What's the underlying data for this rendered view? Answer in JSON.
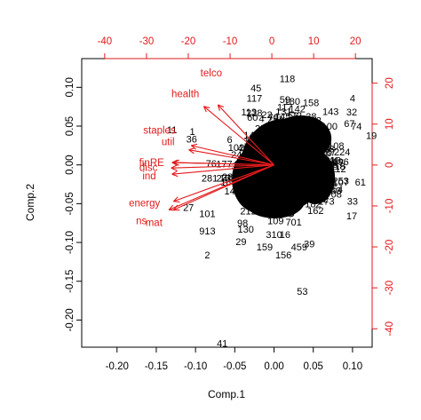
{
  "chart_data": {
    "type": "biplot",
    "xlabel": "Comp.1",
    "ylabel": "Comp.2",
    "xlim": [
      -0.245,
      0.125
    ],
    "ylim": [
      -0.235,
      0.137
    ],
    "x_ticks": [
      "-0.20",
      "-0.15",
      "-0.10",
      "-0.05",
      "0.00",
      "0.05",
      "0.10"
    ],
    "x_tick_values": [
      -0.2,
      -0.15,
      -0.1,
      -0.05,
      0.0,
      0.05,
      0.1
    ],
    "y_ticks": [
      "0.10",
      "0.05",
      "0.00",
      "-0.05",
      "-0.10",
      "-0.15",
      "-0.20"
    ],
    "y_tick_values": [
      0.1,
      0.05,
      0.0,
      -0.05,
      -0.1,
      -0.15,
      -0.2
    ],
    "top_ticks": [
      "-40",
      "-30",
      "-20",
      "-10",
      "0",
      "10",
      "20"
    ],
    "top_tick_values": [
      -40,
      -30,
      -20,
      -10,
      0,
      10,
      20
    ],
    "right_ticks": [
      "20",
      "10",
      "0",
      "-10",
      "-20",
      "-30",
      "-40"
    ],
    "right_tick_values": [
      20,
      10,
      0,
      -10,
      -20,
      -30,
      -40
    ],
    "top_lim": [
      -45.5,
      24.0
    ],
    "right_lim": [
      -44.5,
      26.0
    ],
    "arrow_color": "#e31a1c",
    "loadings": [
      {
        "name": "telco",
        "x": -0.0715,
        "y": 0.0775,
        "lx": -0.08,
        "ly": 0.119
      },
      {
        "name": "health",
        "x": -0.0895,
        "y": 0.0755,
        "lx": -0.113,
        "ly": 0.092
      },
      {
        "name": "staples",
        "x": -0.1055,
        "y": 0.025,
        "lx": -0.146,
        "ly": 0.045
      },
      {
        "name": "util",
        "x": -0.1085,
        "y": 0.0195,
        "lx": -0.135,
        "ly": 0.03
      },
      {
        "name": "fin",
        "x": -0.128,
        "y": 0.003,
        "lx": -0.165,
        "ly": 0.003
      },
      {
        "name": "RE",
        "x": -0.13,
        "y": 0.003,
        "lx": -0.149,
        "ly": 0.003
      },
      {
        "name": "disc",
        "x": -0.131,
        "y": -0.004,
        "lx": -0.16,
        "ly": -0.003
      },
      {
        "name": "ind",
        "x": -0.13,
        "y": -0.012,
        "lx": -0.159,
        "ly": -0.014
      },
      {
        "name": "energy",
        "x": -0.128,
        "y": -0.047,
        "lx": -0.165,
        "ly": -0.049
      },
      {
        "name": "mat",
        "x": -0.134,
        "y": -0.058,
        "lx": -0.153,
        "ly": -0.074
      },
      {
        "name": "ns",
        "x": -0.128,
        "y": -0.058,
        "lx": -0.169,
        "ly": -0.072
      }
    ],
    "observations": [
      {
        "label": "118",
        "x": 0.017,
        "y": 0.111
      },
      {
        "label": "45",
        "x": -0.023,
        "y": 0.099
      },
      {
        "label": "117",
        "x": -0.025,
        "y": 0.086
      },
      {
        "label": "59",
        "x": 0.014,
        "y": 0.084
      },
      {
        "label": "180",
        "x": 0.023,
        "y": 0.082
      },
      {
        "label": "158",
        "x": 0.047,
        "y": 0.08
      },
      {
        "label": "4",
        "x": 0.1,
        "y": 0.086
      },
      {
        "label": "143",
        "x": 0.072,
        "y": 0.069
      },
      {
        "label": "32",
        "x": 0.099,
        "y": 0.068
      },
      {
        "label": "67",
        "x": 0.096,
        "y": 0.053
      },
      {
        "label": "74",
        "x": 0.105,
        "y": 0.05
      },
      {
        "label": "19",
        "x": 0.124,
        "y": 0.038
      },
      {
        "label": "113",
        "x": -0.032,
        "y": 0.068
      },
      {
        "label": "262",
        "x": 0.05,
        "y": 0.057
      },
      {
        "label": "1",
        "x": -0.104,
        "y": 0.043
      },
      {
        "label": "36",
        "x": -0.105,
        "y": 0.033
      },
      {
        "label": "11",
        "x": -0.13,
        "y": 0.045
      },
      {
        "label": "76",
        "x": -0.08,
        "y": 0.002
      },
      {
        "label": "281",
        "x": -0.082,
        "y": -0.017
      },
      {
        "label": "27",
        "x": -0.109,
        "y": -0.055
      },
      {
        "label": "101",
        "x": -0.085,
        "y": -0.063
      },
      {
        "label": "913",
        "x": -0.085,
        "y": -0.085
      },
      {
        "label": "98",
        "x": -0.04,
        "y": -0.075
      },
      {
        "label": "130",
        "x": -0.036,
        "y": -0.083
      },
      {
        "label": "109",
        "x": 0.002,
        "y": -0.072
      },
      {
        "label": "701",
        "x": 0.025,
        "y": -0.074
      },
      {
        "label": "310",
        "x": 0.0,
        "y": -0.09
      },
      {
        "label": "16",
        "x": 0.014,
        "y": -0.09
      },
      {
        "label": "29",
        "x": -0.042,
        "y": -0.099
      },
      {
        "label": "39",
        "x": 0.045,
        "y": -0.102
      },
      {
        "label": "459",
        "x": 0.032,
        "y": -0.106
      },
      {
        "label": "159",
        "x": -0.012,
        "y": -0.106
      },
      {
        "label": "156",
        "x": 0.012,
        "y": -0.116
      },
      {
        "label": "2",
        "x": -0.085,
        "y": -0.116
      },
      {
        "label": "53",
        "x": 0.036,
        "y": -0.163
      },
      {
        "label": "41",
        "x": -0.066,
        "y": -0.23
      },
      {
        "label": "708",
        "x": 0.076,
        "y": -0.038
      },
      {
        "label": "33",
        "x": 0.1,
        "y": -0.047
      },
      {
        "label": "17",
        "x": 0.099,
        "y": -0.066
      },
      {
        "label": "107",
        "x": 0.085,
        "y": -0.022
      },
      {
        "label": "61",
        "x": 0.11,
        "y": -0.022
      },
      {
        "label": "97",
        "x": 0.082,
        "y": 0.003
      },
      {
        "label": "24",
        "x": 0.065,
        "y": 0.021
      }
    ]
  }
}
